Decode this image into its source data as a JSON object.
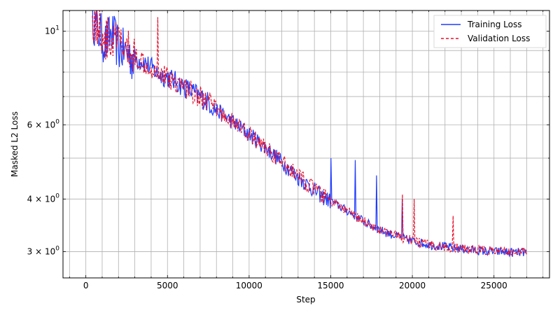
{
  "chart_data": {
    "type": "line",
    "title": "",
    "xlabel": "Step",
    "ylabel": "Masked L2 Loss",
    "xlim": [
      -1400,
      28400
    ],
    "ylim": [
      2.6,
      11.2
    ],
    "yscale": "log",
    "grid": true,
    "legend_position": "top-right",
    "x_ticks": [
      0,
      5000,
      10000,
      15000,
      20000,
      25000
    ],
    "x_tick_labels": [
      "0",
      "5000",
      "10000",
      "15000",
      "20000",
      "25000"
    ],
    "y_major_ticks": [
      10,
      6,
      4,
      3
    ],
    "y_major_tick_labels": [
      "10",
      "6 × 10",
      "4 × 10",
      "3 × 10"
    ],
    "y_minor_ticks": [
      3,
      4,
      5,
      6,
      7,
      8,
      9
    ],
    "series": [
      {
        "name": "Training Loss",
        "color": "#1f3cff",
        "style": "solid",
        "points": [
          [
            300,
            13.0
          ],
          [
            500,
            10.5
          ],
          [
            800,
            10.0
          ],
          [
            1200,
            9.4
          ],
          [
            1600,
            9.9
          ],
          [
            2000,
            9.2
          ],
          [
            2500,
            8.9
          ],
          [
            3000,
            8.6
          ],
          [
            3500,
            8.5
          ],
          [
            4000,
            8.2
          ],
          [
            4500,
            7.9
          ],
          [
            5000,
            7.8
          ],
          [
            5500,
            7.6
          ],
          [
            6000,
            7.4
          ],
          [
            6500,
            7.2
          ],
          [
            7000,
            7.0
          ],
          [
            7500,
            6.8
          ],
          [
            8000,
            6.5
          ],
          [
            8500,
            6.3
          ],
          [
            9000,
            6.1
          ],
          [
            9500,
            5.9
          ],
          [
            10000,
            5.7
          ],
          [
            10500,
            5.5
          ],
          [
            11000,
            5.3
          ],
          [
            11500,
            5.1
          ],
          [
            12000,
            4.9
          ],
          [
            12500,
            4.7
          ],
          [
            13000,
            4.5
          ],
          [
            13500,
            4.35
          ],
          [
            14000,
            4.2
          ],
          [
            14500,
            4.05
          ],
          [
            15000,
            3.95
          ],
          [
            15500,
            3.85
          ],
          [
            16000,
            3.75
          ],
          [
            16500,
            3.65
          ],
          [
            17000,
            3.55
          ],
          [
            17500,
            3.45
          ],
          [
            18000,
            3.38
          ],
          [
            18500,
            3.32
          ],
          [
            19000,
            3.27
          ],
          [
            19500,
            3.22
          ],
          [
            20000,
            3.18
          ],
          [
            20500,
            3.15
          ],
          [
            21000,
            3.12
          ],
          [
            21500,
            3.1
          ],
          [
            22000,
            3.08
          ],
          [
            22500,
            3.06
          ],
          [
            23000,
            3.05
          ],
          [
            23500,
            3.03
          ],
          [
            24000,
            3.02
          ],
          [
            24500,
            3.01
          ],
          [
            25000,
            3.0
          ],
          [
            25500,
            3.0
          ],
          [
            26000,
            2.99
          ],
          [
            26500,
            2.99
          ],
          [
            27000,
            2.99
          ]
        ],
        "spikes": [
          [
            15000,
            5.0
          ],
          [
            16500,
            4.95
          ],
          [
            17800,
            4.55
          ],
          [
            19400,
            4.0
          ]
        ]
      },
      {
        "name": "Validation Loss",
        "color": "#e8112d",
        "style": "dashed",
        "points": [
          [
            400,
            10.8
          ],
          [
            800,
            10.2
          ],
          [
            1200,
            9.6
          ],
          [
            1600,
            9.5
          ],
          [
            2000,
            9.4
          ],
          [
            2500,
            9.0
          ],
          [
            3000,
            8.7
          ],
          [
            3500,
            8.5
          ],
          [
            4000,
            8.2
          ],
          [
            4500,
            8.0
          ],
          [
            5000,
            7.8
          ],
          [
            5500,
            7.6
          ],
          [
            6000,
            7.4
          ],
          [
            6500,
            7.2
          ],
          [
            7000,
            7.0
          ],
          [
            7500,
            6.8
          ],
          [
            8000,
            6.5
          ],
          [
            8500,
            6.3
          ],
          [
            9000,
            6.1
          ],
          [
            9500,
            5.9
          ],
          [
            10000,
            5.7
          ],
          [
            10500,
            5.5
          ],
          [
            11000,
            5.3
          ],
          [
            11500,
            5.1
          ],
          [
            12000,
            4.9
          ],
          [
            12500,
            4.7
          ],
          [
            13000,
            4.55
          ],
          [
            13500,
            4.38
          ],
          [
            14000,
            4.22
          ],
          [
            14500,
            4.08
          ],
          [
            15000,
            3.95
          ],
          [
            15500,
            3.85
          ],
          [
            16000,
            3.74
          ],
          [
            16500,
            3.64
          ],
          [
            17000,
            3.55
          ],
          [
            17500,
            3.46
          ],
          [
            18000,
            3.38
          ],
          [
            18500,
            3.32
          ],
          [
            19000,
            3.27
          ],
          [
            19500,
            3.23
          ],
          [
            20000,
            3.19
          ],
          [
            20500,
            3.15
          ],
          [
            21000,
            3.12
          ],
          [
            21500,
            3.1
          ],
          [
            22000,
            3.08
          ],
          [
            22500,
            3.06
          ],
          [
            23000,
            3.05
          ],
          [
            23500,
            3.04
          ],
          [
            24000,
            3.03
          ],
          [
            24500,
            3.02
          ],
          [
            25000,
            3.01
          ],
          [
            25500,
            3.0
          ],
          [
            26000,
            3.0
          ],
          [
            26500,
            3.0
          ],
          [
            27000,
            3.0
          ]
        ],
        "spikes": [
          [
            4400,
            10.8
          ],
          [
            19400,
            4.1
          ],
          [
            20100,
            4.0
          ],
          [
            22500,
            3.65
          ]
        ]
      }
    ]
  }
}
